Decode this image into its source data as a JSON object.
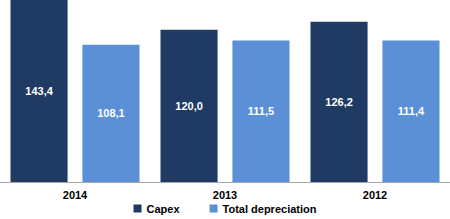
{
  "chart_data": {
    "type": "bar",
    "categories": [
      "2014",
      "2013",
      "2012"
    ],
    "series": [
      {
        "name": "Capex",
        "color": "#1f3a63",
        "values": [
          143.4,
          120.0,
          126.2
        ],
        "value_labels": [
          "143,4",
          "120,0",
          "126,2"
        ]
      },
      {
        "name": "Total depreciation",
        "color": "#5b8fd6",
        "values": [
          108.1,
          111.5,
          111.4
        ],
        "value_labels": [
          "108,1",
          "111,5",
          "111,4"
        ]
      }
    ],
    "data_labels": true,
    "tick_labels": "x",
    "grid": false,
    "legend": "bottom"
  }
}
